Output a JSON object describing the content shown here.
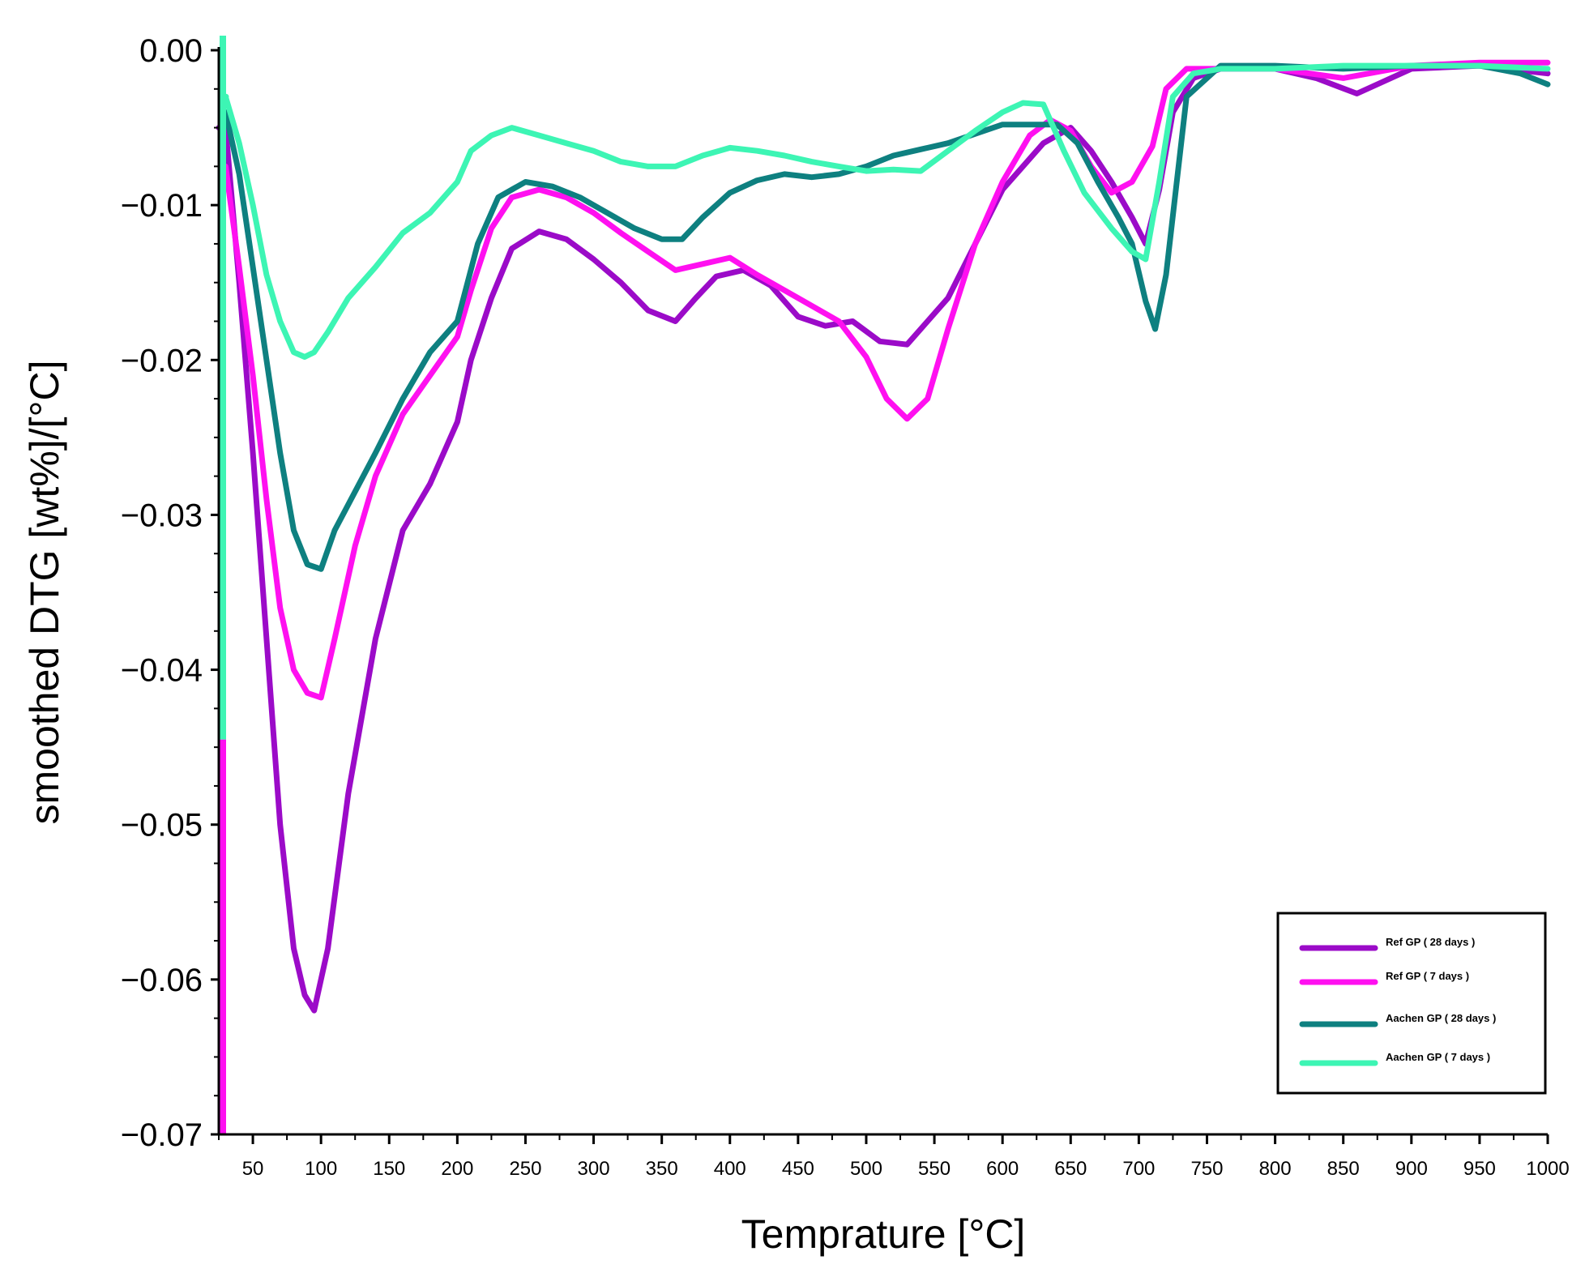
{
  "chart_data": {
    "type": "line",
    "title": "",
    "xlabel": "Temprature [°C]",
    "ylabel": "smoothed DTG [wt%]/[°C]",
    "xlim": [
      25,
      1000
    ],
    "ylim": [
      -0.07,
      0.0
    ],
    "x_ticks": [
      50,
      100,
      150,
      200,
      250,
      300,
      350,
      400,
      450,
      500,
      550,
      600,
      650,
      700,
      750,
      800,
      850,
      900,
      950,
      1000
    ],
    "y_ticks": [
      {
        "value": 0.0,
        "label": "0.00"
      },
      {
        "value": -0.01,
        "label": "−0.01"
      },
      {
        "value": -0.02,
        "label": "−0.02"
      },
      {
        "value": -0.03,
        "label": "−0.03"
      },
      {
        "value": -0.04,
        "label": "−0.04"
      },
      {
        "value": -0.05,
        "label": "−0.05"
      },
      {
        "value": -0.06,
        "label": "−0.06"
      },
      {
        "value": -0.07,
        "label": "−0.07"
      }
    ],
    "grid": false,
    "legend_position": "bottom-right",
    "series": [
      {
        "name": "Ref GP ( 28 days )",
        "color": "#9B0BC8",
        "x": [
          30,
          40,
          50,
          60,
          70,
          80,
          88,
          95,
          105,
          120,
          140,
          160,
          180,
          200,
          210,
          225,
          240,
          260,
          280,
          300,
          320,
          340,
          360,
          375,
          390,
          410,
          430,
          450,
          470,
          490,
          510,
          530,
          560,
          600,
          630,
          650,
          665,
          680,
          695,
          705,
          715,
          725,
          740,
          760,
          800,
          830,
          860,
          900,
          950,
          1000
        ],
        "y": [
          -0.005,
          -0.015,
          -0.026,
          -0.038,
          -0.05,
          -0.058,
          -0.061,
          -0.062,
          -0.058,
          -0.048,
          -0.038,
          -0.031,
          -0.028,
          -0.024,
          -0.02,
          -0.016,
          -0.0128,
          -0.0117,
          -0.0122,
          -0.0135,
          -0.015,
          -0.0168,
          -0.0175,
          -0.016,
          -0.0146,
          -0.0142,
          -0.0152,
          -0.0172,
          -0.0178,
          -0.0175,
          -0.0188,
          -0.019,
          -0.016,
          -0.009,
          -0.006,
          -0.005,
          -0.0065,
          -0.0085,
          -0.0108,
          -0.0125,
          -0.009,
          -0.004,
          -0.0018,
          -0.0012,
          -0.0012,
          -0.0018,
          -0.0028,
          -0.0012,
          -0.001,
          -0.0015
        ]
      },
      {
        "name": "Ref GP ( 7 days )",
        "color": "#FF10F0",
        "x": [
          30,
          40,
          50,
          60,
          70,
          80,
          90,
          100,
          110,
          125,
          140,
          160,
          180,
          200,
          210,
          225,
          240,
          260,
          280,
          300,
          320,
          340,
          360,
          380,
          400,
          420,
          450,
          480,
          500,
          515,
          530,
          545,
          560,
          580,
          600,
          620,
          635,
          650,
          665,
          680,
          695,
          710,
          720,
          735,
          760,
          800,
          850,
          900,
          950,
          1000
        ],
        "y": [
          -0.0075,
          -0.014,
          -0.021,
          -0.029,
          -0.036,
          -0.04,
          -0.0415,
          -0.0418,
          -0.038,
          -0.032,
          -0.0275,
          -0.0235,
          -0.021,
          -0.0185,
          -0.0155,
          -0.0115,
          -0.0095,
          -0.009,
          -0.0095,
          -0.0105,
          -0.0118,
          -0.013,
          -0.0142,
          -0.0138,
          -0.0134,
          -0.0145,
          -0.016,
          -0.0175,
          -0.0198,
          -0.0225,
          -0.0238,
          -0.0225,
          -0.018,
          -0.0125,
          -0.0085,
          -0.0055,
          -0.0045,
          -0.0052,
          -0.0075,
          -0.0092,
          -0.0085,
          -0.0062,
          -0.0025,
          -0.0012,
          -0.0012,
          -0.0012,
          -0.0018,
          -0.001,
          -0.0008,
          -0.0008
        ]
      },
      {
        "name": "Aachen GP ( 28 days )",
        "color": "#0E8080",
        "x": [
          30,
          40,
          50,
          60,
          70,
          80,
          90,
          100,
          110,
          125,
          140,
          160,
          180,
          200,
          215,
          230,
          250,
          270,
          290,
          310,
          330,
          350,
          365,
          380,
          400,
          420,
          440,
          460,
          480,
          500,
          520,
          540,
          560,
          580,
          600,
          620,
          640,
          655,
          670,
          685,
          695,
          705,
          712,
          720,
          735,
          760,
          800,
          850,
          900,
          950,
          980,
          1000
        ],
        "y": [
          -0.004,
          -0.008,
          -0.014,
          -0.02,
          -0.026,
          -0.031,
          -0.0332,
          -0.0335,
          -0.031,
          -0.0285,
          -0.026,
          -0.0225,
          -0.0195,
          -0.0175,
          -0.0125,
          -0.0095,
          -0.0085,
          -0.0088,
          -0.0095,
          -0.0105,
          -0.0115,
          -0.0122,
          -0.0122,
          -0.0108,
          -0.0092,
          -0.0084,
          -0.008,
          -0.0082,
          -0.008,
          -0.0075,
          -0.0068,
          -0.0064,
          -0.006,
          -0.0054,
          -0.0048,
          -0.0048,
          -0.0048,
          -0.006,
          -0.0085,
          -0.0108,
          -0.0125,
          -0.0162,
          -0.018,
          -0.0145,
          -0.003,
          -0.001,
          -0.001,
          -0.0012,
          -0.001,
          -0.001,
          -0.0015,
          -0.0022
        ]
      },
      {
        "name": "Aachen GP ( 7 days )",
        "color": "#3DF5B4",
        "x": [
          30,
          40,
          50,
          60,
          70,
          80,
          88,
          95,
          105,
          120,
          140,
          160,
          180,
          200,
          210,
          225,
          240,
          260,
          280,
          300,
          320,
          340,
          360,
          380,
          400,
          420,
          440,
          460,
          480,
          500,
          520,
          540,
          560,
          580,
          600,
          615,
          630,
          645,
          660,
          680,
          695,
          705,
          715,
          725,
          740,
          760,
          800,
          850,
          900,
          950,
          1000
        ],
        "y": [
          -0.003,
          -0.006,
          -0.01,
          -0.0145,
          -0.0175,
          -0.0195,
          -0.0198,
          -0.0195,
          -0.0182,
          -0.016,
          -0.014,
          -0.0118,
          -0.0105,
          -0.0085,
          -0.0065,
          -0.0055,
          -0.005,
          -0.0055,
          -0.006,
          -0.0065,
          -0.0072,
          -0.0075,
          -0.0075,
          -0.0068,
          -0.0063,
          -0.0065,
          -0.0068,
          -0.0072,
          -0.0075,
          -0.0078,
          -0.0077,
          -0.0078,
          -0.0065,
          -0.0052,
          -0.004,
          -0.0034,
          -0.0035,
          -0.0065,
          -0.0092,
          -0.0115,
          -0.013,
          -0.0135,
          -0.0085,
          -0.003,
          -0.0015,
          -0.0012,
          -0.0012,
          -0.001,
          -0.001,
          -0.001,
          -0.0012
        ]
      }
    ]
  }
}
